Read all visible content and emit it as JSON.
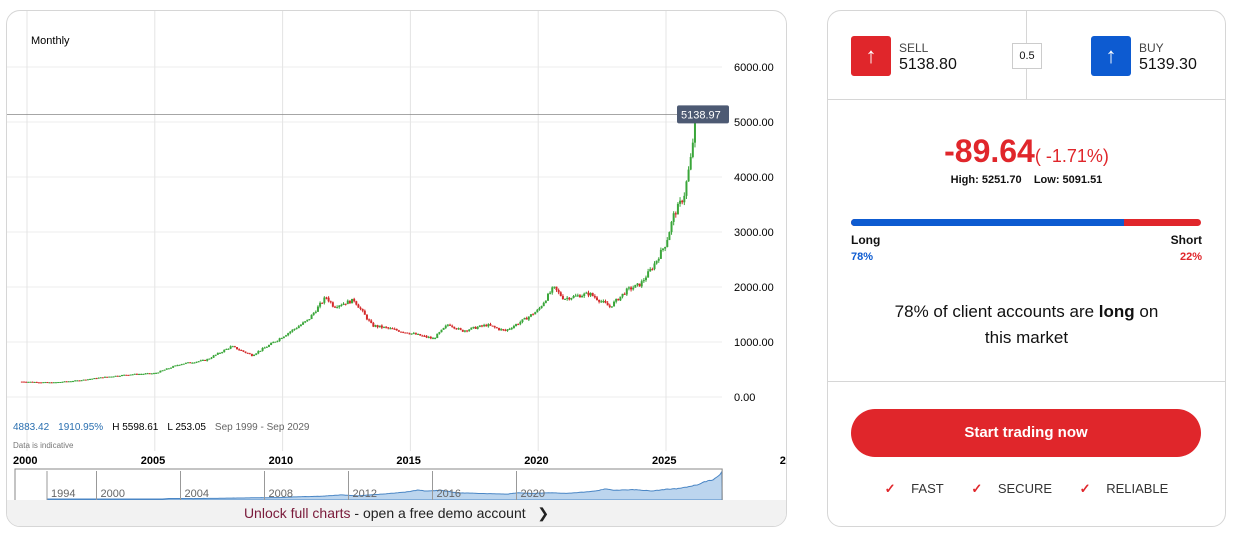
{
  "chart": {
    "interval": "Monthly",
    "current_label": "5138.97",
    "stats": {
      "last": "4883.42",
      "change_pct": "1910.95%",
      "high": "H 5598.61",
      "low": "L 253.05",
      "range": "Sep 1999 - Sep 2029"
    },
    "note": "Data is indicative",
    "unlock_a": "Unlock full charts",
    "unlock_b": " - open a free demo account"
  },
  "chart_data": {
    "type": "candlestick",
    "xlabel": "",
    "ylabel": "",
    "ylim": [
      -500,
      6500
    ],
    "xlim": [
      1999.7,
      2028.5
    ],
    "yticks": [
      "0.00",
      "1000.00",
      "2000.00",
      "3000.00",
      "4000.00",
      "5000.00",
      "6000.00"
    ],
    "xticks": [
      "2000",
      "2005",
      "2010",
      "2015",
      "2020",
      "2025",
      "2"
    ],
    "navigator_ticks": [
      "1994",
      "2000",
      "2004",
      "2008",
      "2012",
      "2016",
      "2020"
    ],
    "current_price": 5138.97,
    "price_path": [
      [
        1999.8,
        280
      ],
      [
        2001,
        262
      ],
      [
        2002,
        300
      ],
      [
        2003,
        360
      ],
      [
        2004,
        410
      ],
      [
        2005,
        430
      ],
      [
        2006,
        600
      ],
      [
        2007,
        670
      ],
      [
        2008,
        920
      ],
      [
        2008.8,
        760
      ],
      [
        2009.5,
        950
      ],
      [
        2010,
        1100
      ],
      [
        2011,
        1400
      ],
      [
        2011.7,
        1820
      ],
      [
        2012,
        1650
      ],
      [
        2012.8,
        1760
      ],
      [
        2013.5,
        1300
      ],
      [
        2014,
        1260
      ],
      [
        2015,
        1160
      ],
      [
        2015.9,
        1060
      ],
      [
        2016.5,
        1330
      ],
      [
        2017,
        1200
      ],
      [
        2018,
        1310
      ],
      [
        2018.7,
        1200
      ],
      [
        2019.5,
        1420
      ],
      [
        2020,
        1580
      ],
      [
        2020.6,
        1990
      ],
      [
        2021,
        1790
      ],
      [
        2022,
        1880
      ],
      [
        2022.8,
        1640
      ],
      [
        2023.5,
        1950
      ],
      [
        2024,
        2050
      ],
      [
        2024.5,
        2380
      ],
      [
        2025,
        2800
      ],
      [
        2025.3,
        3300
      ],
      [
        2025.7,
        3650
      ],
      [
        2026,
        4400
      ],
      [
        2026.15,
        5139
      ]
    ],
    "colors": {
      "up": "#3aa63a",
      "down": "#d42a2a",
      "label_bg": "#4d5a73"
    }
  },
  "quote": {
    "sell_label": "SELL",
    "sell": "5138.80",
    "spread": "0.5",
    "buy_label": "BUY",
    "buy": "5139.30",
    "change": "-89.64",
    "change_pct": "( -1.71%)",
    "high": "High: 5251.70",
    "low": "Low: 5091.51",
    "long_label": "Long",
    "short_label": "Short",
    "long_pct": "78%",
    "short_pct": "22%",
    "long_fraction": 0.78,
    "sent_a": "78% of client accounts are ",
    "sent_b": "long",
    "sent_c": " on this market",
    "cta": "Start trading now",
    "features": [
      "FAST",
      "SECURE",
      "RELIABLE"
    ],
    "sell_color": "#e0262b",
    "buy_color": "#0d5bd1"
  }
}
